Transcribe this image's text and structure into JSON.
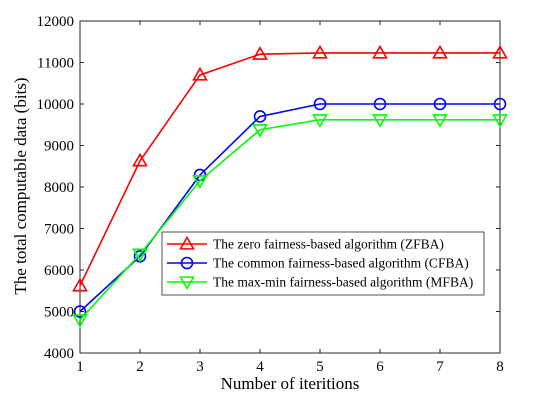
{
  "chart_data": {
    "type": "line",
    "title": "",
    "xlabel": "Number of iteritions",
    "ylabel": "The total computable data (bits)",
    "x": [
      1,
      2,
      3,
      4,
      5,
      6,
      7,
      8
    ],
    "xlim": [
      1,
      8
    ],
    "ylim": [
      4000,
      12000
    ],
    "xticks": [
      "1",
      "2",
      "3",
      "4",
      "5",
      "6",
      "7",
      "8"
    ],
    "yticks": [
      "4000",
      "5000",
      "6000",
      "7000",
      "8000",
      "9000",
      "10000",
      "11000",
      "12000"
    ],
    "grid": false,
    "legend_position": "middle-right",
    "series": [
      {
        "name": "The zero fairness-based algorithm (ZFBA)",
        "color": "#ff0000",
        "marker": "triangle-up",
        "values": [
          5620,
          8630,
          10700,
          11200,
          11230,
          11230,
          11230,
          11230
        ]
      },
      {
        "name": "The common fairness-based algorithm (CFBA)",
        "color": "#0000ff",
        "marker": "circle",
        "values": [
          5000,
          6330,
          8290,
          9700,
          10000,
          10000,
          10000,
          10000
        ]
      },
      {
        "name": "The max-min fairness-based algorithm (MFBA)",
        "color": "#00ff00",
        "marker": "triangle-down",
        "values": [
          4800,
          6380,
          8150,
          9380,
          9620,
          9620,
          9620,
          9620
        ]
      }
    ]
  }
}
